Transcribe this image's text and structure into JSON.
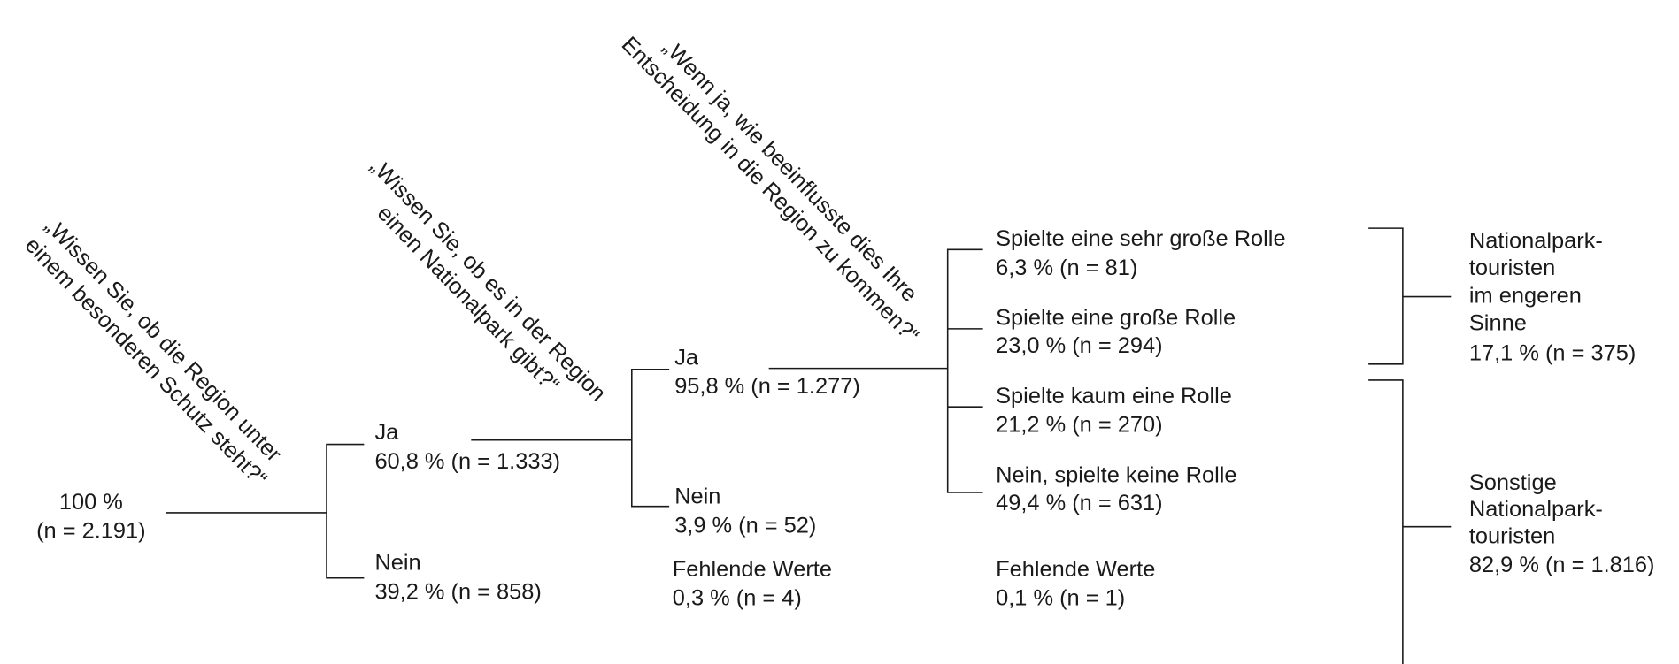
{
  "questions": [
    [
      "„Wissen Sie, ob die Region unter",
      "einem besonderen Schutz steht?“"
    ],
    [
      "„Wissen Sie, ob es in der Region",
      "einen Nationalpark gibt?“"
    ],
    [
      "„Wenn ja, wie beeinflusste dies Ihre",
      "Entscheidung in die Region zu kommen?“"
    ]
  ],
  "root": [
    "100 %",
    "(n = 2.191)"
  ],
  "level1": [
    [
      "Ja",
      "60,8 % (n = 1.333)"
    ],
    [
      "Nein",
      "39,2 % (n = 858)"
    ]
  ],
  "level2": [
    [
      "Ja",
      "95,8 % (n = 1.277)"
    ],
    [
      "Nein",
      "3,9 % (n = 52)"
    ],
    [
      "Fehlende Werte",
      "0,3 % (n = 4)"
    ]
  ],
  "level3": [
    [
      "Spielte eine sehr große Rolle",
      "6,3 % (n = 81)"
    ],
    [
      "Spielte eine große Rolle",
      "23,0 % (n = 294)"
    ],
    [
      "Spielte kaum eine Rolle",
      "21,2 % (n = 270)"
    ],
    [
      "Nein, spielte keine Rolle",
      "49,4 % (n = 631)"
    ],
    [
      "Fehlende Werte",
      "0,1 % (n = 1)"
    ]
  ],
  "groups": [
    [
      "Nationalpark-",
      "touristen",
      "im engeren",
      "Sinne",
      "17,1 % (n = 375)"
    ],
    [
      "Sonstige",
      "Nationalpark-",
      "touristen",
      "82,9 % (n = 1.816)"
    ]
  ]
}
